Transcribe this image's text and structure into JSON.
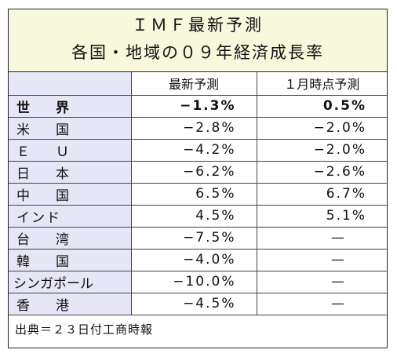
{
  "title": "ＩＭＦ最新予測",
  "subtitle": "各国・地域の０９年経済成長率",
  "columns": [
    "",
    "最新予測",
    "１月時点予測"
  ],
  "rows": [
    {
      "region": "世　界",
      "latest": "−1.3%",
      "january": "0.5%",
      "bold": true
    },
    {
      "region": "米　国",
      "latest": "−2.8%",
      "january": "−2.0%"
    },
    {
      "region": "Ｅ　Ｕ",
      "latest": "−4.2%",
      "january": "−2.0%"
    },
    {
      "region": "日　本",
      "latest": "−6.2%",
      "january": "−2.6%"
    },
    {
      "region": "中　国",
      "latest": "6.5%",
      "january": "6.7%"
    },
    {
      "region": "インド",
      "latest": "4.5%",
      "january": "5.1%"
    },
    {
      "region": "台　湾",
      "latest": "−7.5%",
      "january": "—"
    },
    {
      "region": "韓　国",
      "latest": "−4.0%",
      "january": "—"
    },
    {
      "region": "シンガポール",
      "latest": "−10.0%",
      "january": "—"
    },
    {
      "region": "香　港",
      "latest": "−4.5%",
      "january": "—"
    }
  ],
  "source": "出典＝２３日付工商時報",
  "colors": {
    "header_bg": "#f7f8dc",
    "label_bg": "#e6e6f6",
    "border": "#222222"
  }
}
